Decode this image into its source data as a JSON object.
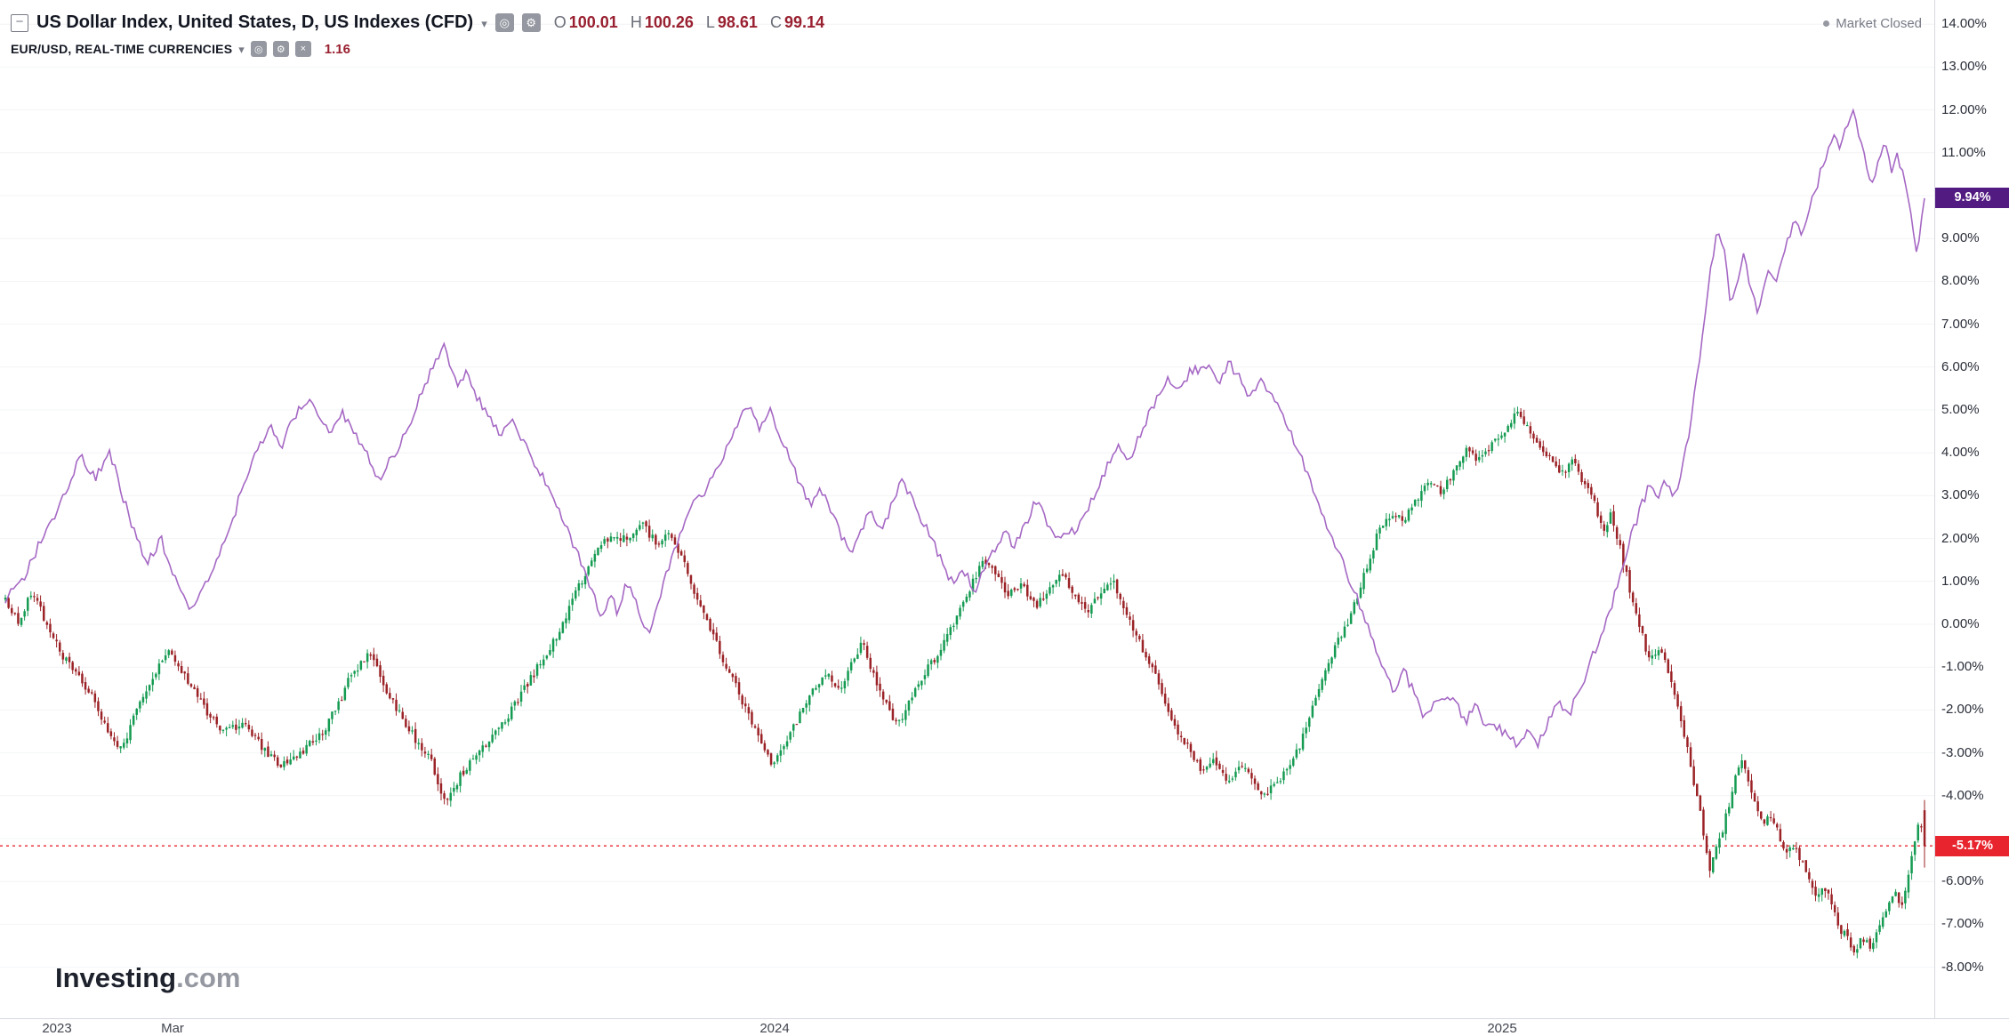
{
  "header": {
    "symbol_row": {
      "title": "US Dollar Index, United States, D, US Indexes (CFD)",
      "ohlc": [
        {
          "label": "O",
          "value": "100.01"
        },
        {
          "label": "H",
          "value": "100.26"
        },
        {
          "label": "L",
          "value": "98.61"
        },
        {
          "label": "C",
          "value": "99.14"
        }
      ]
    },
    "compare_row": {
      "title": "EUR/USD, REAL-TIME CURRENCIES",
      "value": "1.16"
    },
    "market_status": "Market Closed"
  },
  "logo": {
    "brand": "Investing",
    "suffix": ".com"
  },
  "price_axis": {
    "labels": [
      {
        "label": "14.00%",
        "value": 14
      },
      {
        "label": "13.00%",
        "value": 13
      },
      {
        "label": "12.00%",
        "value": 12
      },
      {
        "label": "11.00%",
        "value": 11
      },
      {
        "label": "9.00%",
        "value": 9
      },
      {
        "label": "8.00%",
        "value": 8
      },
      {
        "label": "7.00%",
        "value": 7
      },
      {
        "label": "6.00%",
        "value": 6
      },
      {
        "label": "5.00%",
        "value": 5
      },
      {
        "label": "4.00%",
        "value": 4
      },
      {
        "label": "3.00%",
        "value": 3
      },
      {
        "label": "2.00%",
        "value": 2
      },
      {
        "label": "1.00%",
        "value": 1
      },
      {
        "label": "0.00%",
        "value": 0
      },
      {
        "label": "-1.00%",
        "value": -1
      },
      {
        "label": "-2.00%",
        "value": -2
      },
      {
        "label": "-3.00%",
        "value": -3
      },
      {
        "label": "-4.00%",
        "value": -4
      },
      {
        "label": "-6.00%",
        "value": -6
      },
      {
        "label": "-7.00%",
        "value": -7
      },
      {
        "label": "-8.00%",
        "value": -8
      }
    ],
    "badges": [
      {
        "text": "9.94%",
        "value": 9.94,
        "color": "#521b82"
      },
      {
        "text": "-5.17%",
        "value": -5.17,
        "color": "#e8252e"
      }
    ]
  },
  "time_axis": {
    "ticks": [
      {
        "label": "2023",
        "f": 2.7
      },
      {
        "label": "Mar",
        "f": 8.7
      },
      {
        "label": "2024",
        "f": 40.1
      },
      {
        "label": "2025",
        "f": 78.0
      }
    ]
  },
  "chart_data": {
    "type": "candlestick+line",
    "title": "US Dollar Index vs EUR/USD, percent change, daily",
    "yunit": "percent",
    "ylim": [
      -8,
      14
    ],
    "grid": "horizontal-faint",
    "x_range": [
      "Dec 2022",
      "Aug 2025"
    ],
    "current_line": {
      "value": -5.17,
      "color": "#e8252e",
      "style": "dotted"
    },
    "series": [
      {
        "name": "US Dollar Index",
        "type": "candlestick",
        "up_color": "#159b52",
        "down_color": "#9b2226",
        "last_close_pct": -5.17,
        "path_pct": [
          [
            0,
            0.6
          ],
          [
            0.7,
            0
          ],
          [
            1.4,
            0.8
          ],
          [
            2.4,
            -0.3
          ],
          [
            3.4,
            -1.0
          ],
          [
            4.4,
            -1.6
          ],
          [
            5.4,
            -2.6
          ],
          [
            6.1,
            -2.9
          ],
          [
            6.7,
            -2.2
          ],
          [
            7.6,
            -1.3
          ],
          [
            8.4,
            -0.6
          ],
          [
            9.4,
            -1.2
          ],
          [
            10.4,
            -2.0
          ],
          [
            11.4,
            -2.5
          ],
          [
            12.4,
            -2.3
          ],
          [
            13.4,
            -2.9
          ],
          [
            14.4,
            -3.3
          ],
          [
            15.4,
            -3.0
          ],
          [
            16.4,
            -2.6
          ],
          [
            17.2,
            -2.0
          ],
          [
            18.1,
            -1.1
          ],
          [
            19,
            -0.7
          ],
          [
            19.8,
            -1.5
          ],
          [
            20.6,
            -2.1
          ],
          [
            21.4,
            -2.7
          ],
          [
            22.3,
            -3.3
          ],
          [
            22.8,
            -4.2
          ],
          [
            23.9,
            -3.4
          ],
          [
            24.8,
            -2.9
          ],
          [
            26.4,
            -2.0
          ],
          [
            27.2,
            -1.4
          ],
          [
            28,
            -0.8
          ],
          [
            28.8,
            -0.2
          ],
          [
            29.8,
            0.8
          ],
          [
            30.6,
            1.5
          ],
          [
            31.2,
            1.9
          ],
          [
            32.6,
            2.1
          ],
          [
            33.2,
            2.3
          ],
          [
            33.9,
            1.9
          ],
          [
            34.6,
            2.1
          ],
          [
            35.2,
            1.6
          ],
          [
            35.8,
            0.9
          ],
          [
            36.4,
            0.2
          ],
          [
            37.5,
            -0.9
          ],
          [
            38.8,
            -2.2
          ],
          [
            40,
            -3.3
          ],
          [
            40.6,
            -2.8
          ],
          [
            41.9,
            -1.7
          ],
          [
            42.8,
            -1.1
          ],
          [
            43.5,
            -1.6
          ],
          [
            44.6,
            -0.4
          ],
          [
            45.8,
            -1.8
          ],
          [
            46.5,
            -2.4
          ],
          [
            47.7,
            -1.3
          ],
          [
            49,
            -0.4
          ],
          [
            50.3,
            0.9
          ],
          [
            51,
            1.5
          ],
          [
            52.3,
            0.7
          ],
          [
            53,
            0.9
          ],
          [
            53.7,
            0.4
          ],
          [
            55,
            1.2
          ],
          [
            56.3,
            0.3
          ],
          [
            57.7,
            1.0
          ],
          [
            58.3,
            0.4
          ],
          [
            59.7,
            -1.0
          ],
          [
            61,
            -2.4
          ],
          [
            62.4,
            -3.5
          ],
          [
            63,
            -3.2
          ],
          [
            63.7,
            -3.7
          ],
          [
            64.4,
            -3.3
          ],
          [
            65.5,
            -4.0
          ],
          [
            66.8,
            -3.4
          ],
          [
            67.5,
            -2.8
          ],
          [
            68.8,
            -1.0
          ],
          [
            70.2,
            0.3
          ],
          [
            71.5,
            2.1
          ],
          [
            72.2,
            2.6
          ],
          [
            72.8,
            2.4
          ],
          [
            74.2,
            3.4
          ],
          [
            74.8,
            3.1
          ],
          [
            76.2,
            4.1
          ],
          [
            76.8,
            3.8
          ],
          [
            78.2,
            4.6
          ],
          [
            78.8,
            5.0
          ],
          [
            79.8,
            4.3
          ],
          [
            81.2,
            3.5
          ],
          [
            81.7,
            3.8
          ],
          [
            82.8,
            2.8
          ],
          [
            83.3,
            2.2
          ],
          [
            83.7,
            2.6
          ],
          [
            84.6,
            0.9
          ],
          [
            85.7,
            -0.9
          ],
          [
            86.2,
            -0.5
          ],
          [
            87.3,
            -2.2
          ],
          [
            88.4,
            -4.6
          ],
          [
            88.8,
            -5.8
          ],
          [
            89.6,
            -4.6
          ],
          [
            90.4,
            -3.1
          ],
          [
            91.2,
            -4.2
          ],
          [
            91.6,
            -4.8
          ],
          [
            92,
            -4.4
          ],
          [
            92.8,
            -5.4
          ],
          [
            93.2,
            -5.1
          ],
          [
            94,
            -6.0
          ],
          [
            94.4,
            -6.4
          ],
          [
            94.8,
            -6.1
          ],
          [
            95.6,
            -7.1
          ],
          [
            96.4,
            -7.6
          ],
          [
            96.8,
            -7.3
          ],
          [
            97.2,
            -7.5
          ],
          [
            98,
            -6.6
          ],
          [
            98.4,
            -6.2
          ],
          [
            98.8,
            -6.6
          ],
          [
            99.1,
            -6.0
          ],
          [
            99.4,
            -5.2
          ],
          [
            99.7,
            -4.5
          ],
          [
            100,
            -5.17
          ]
        ]
      },
      {
        "name": "EUR/USD",
        "type": "line",
        "color": "#a568c4",
        "last_pct": 9.94,
        "path_pct": [
          [
            0,
            0.6
          ],
          [
            1.1,
            1.2
          ],
          [
            2.1,
            2.2
          ],
          [
            3.1,
            3.0
          ],
          [
            3.9,
            3.9
          ],
          [
            4.7,
            3.4
          ],
          [
            5.4,
            4.1
          ],
          [
            6.1,
            3.0
          ],
          [
            6.7,
            2.2
          ],
          [
            7.4,
            1.4
          ],
          [
            8.1,
            2.0
          ],
          [
            8.7,
            1.2
          ],
          [
            9.7,
            0.3
          ],
          [
            10.4,
            0.9
          ],
          [
            11.7,
            2.2
          ],
          [
            12.4,
            3.3
          ],
          [
            13.1,
            4.0
          ],
          [
            13.8,
            4.6
          ],
          [
            14.4,
            4.2
          ],
          [
            15.1,
            4.9
          ],
          [
            15.8,
            5.3
          ],
          [
            16.4,
            4.8
          ],
          [
            17,
            4.4
          ],
          [
            17.5,
            5.0
          ],
          [
            18.8,
            4.0
          ],
          [
            19.4,
            3.3
          ],
          [
            20.8,
            4.4
          ],
          [
            21.4,
            5.1
          ],
          [
            22.1,
            5.8
          ],
          [
            22.8,
            6.5
          ],
          [
            23.6,
            5.6
          ],
          [
            24.1,
            5.9
          ],
          [
            24.6,
            5.3
          ],
          [
            25.8,
            4.4
          ],
          [
            26.4,
            4.7
          ],
          [
            27.8,
            3.6
          ],
          [
            29.1,
            2.4
          ],
          [
            30.2,
            1.2
          ],
          [
            31.1,
            0.1
          ],
          [
            31.5,
            0.7
          ],
          [
            31.9,
            0.3
          ],
          [
            32.4,
            1.0
          ],
          [
            33.5,
            -0.2
          ],
          [
            34.4,
            1.1
          ],
          [
            35.5,
            2.6
          ],
          [
            36.6,
            3.2
          ],
          [
            37.1,
            3.6
          ],
          [
            38.2,
            4.7
          ],
          [
            38.7,
            5.1
          ],
          [
            39.3,
            4.6
          ],
          [
            39.8,
            5.0
          ],
          [
            40.9,
            3.8
          ],
          [
            41.9,
            2.8
          ],
          [
            42.5,
            3.2
          ],
          [
            43.5,
            2.1
          ],
          [
            44.1,
            1.6
          ],
          [
            45.1,
            2.7
          ],
          [
            45.7,
            2.2
          ],
          [
            46.7,
            3.4
          ],
          [
            47.8,
            2.4
          ],
          [
            48.9,
            1.4
          ],
          [
            49.4,
            0.9
          ],
          [
            49.9,
            1.3
          ],
          [
            50.5,
            0.8
          ],
          [
            51.5,
            1.7
          ],
          [
            52.1,
            2.2
          ],
          [
            52.6,
            1.8
          ],
          [
            53.7,
            2.9
          ],
          [
            54.7,
            2.0
          ],
          [
            55.8,
            2.2
          ],
          [
            56.9,
            3.1
          ],
          [
            57.9,
            4.2
          ],
          [
            58.5,
            3.8
          ],
          [
            59.5,
            4.8
          ],
          [
            60.6,
            5.8
          ],
          [
            61.1,
            5.4
          ],
          [
            61.7,
            5.9
          ],
          [
            62.8,
            6.0
          ],
          [
            63.3,
            5.6
          ],
          [
            63.8,
            6.1
          ],
          [
            64.9,
            5.3
          ],
          [
            65.4,
            5.8
          ],
          [
            66.5,
            4.9
          ],
          [
            67.6,
            3.8
          ],
          [
            68.6,
            2.6
          ],
          [
            69.7,
            1.4
          ],
          [
            70.8,
            0.2
          ],
          [
            71.8,
            -1.0
          ],
          [
            72.4,
            -1.6
          ],
          [
            72.9,
            -1.1
          ],
          [
            74,
            -2.2
          ],
          [
            74.5,
            -1.8
          ],
          [
            75.6,
            -1.8
          ],
          [
            76.1,
            -2.3
          ],
          [
            76.6,
            -1.9
          ],
          [
            77.2,
            -2.4
          ],
          [
            78.2,
            -2.5
          ],
          [
            78.8,
            -2.9
          ],
          [
            79.3,
            -2.4
          ],
          [
            79.8,
            -2.8
          ],
          [
            80.9,
            -1.8
          ],
          [
            81.4,
            -2.2
          ],
          [
            82.5,
            -1.0
          ],
          [
            83.6,
            0.3
          ],
          [
            84.6,
            1.9
          ],
          [
            85.2,
            2.7
          ],
          [
            85.7,
            3.3
          ],
          [
            86.1,
            2.9
          ],
          [
            86.5,
            3.4
          ],
          [
            86.9,
            2.9
          ],
          [
            87.3,
            3.5
          ],
          [
            87.7,
            4.4
          ],
          [
            88.1,
            5.6
          ],
          [
            88.5,
            7.0
          ],
          [
            88.9,
            8.4
          ],
          [
            89.2,
            9.3
          ],
          [
            89.6,
            8.6
          ],
          [
            89.9,
            7.4
          ],
          [
            90.3,
            8.0
          ],
          [
            90.6,
            8.6
          ],
          [
            90.9,
            7.9
          ],
          [
            91.3,
            7.3
          ],
          [
            91.6,
            7.8
          ],
          [
            91.9,
            8.3
          ],
          [
            92.3,
            8.0
          ],
          [
            92.6,
            8.5
          ],
          [
            92.9,
            9.0
          ],
          [
            93.3,
            9.4
          ],
          [
            93.6,
            9.1
          ],
          [
            93.9,
            9.6
          ],
          [
            94.3,
            10.1
          ],
          [
            94.6,
            10.6
          ],
          [
            94.9,
            11.0
          ],
          [
            95.3,
            11.4
          ],
          [
            95.6,
            11.1
          ],
          [
            95.9,
            11.7
          ],
          [
            96.3,
            11.9
          ],
          [
            96.6,
            11.4
          ],
          [
            96.9,
            10.8
          ],
          [
            97.3,
            10.3
          ],
          [
            97.6,
            10.9
          ],
          [
            97.9,
            11.2
          ],
          [
            98.3,
            10.6
          ],
          [
            98.6,
            11.0
          ],
          [
            98.9,
            10.4
          ],
          [
            99.3,
            9.6
          ],
          [
            99.6,
            8.5
          ],
          [
            100,
            9.94
          ]
        ]
      }
    ]
  }
}
